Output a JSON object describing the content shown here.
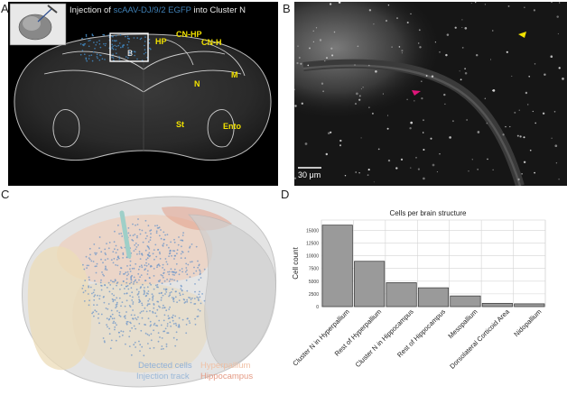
{
  "panels": {
    "a": {
      "letter": "A",
      "title_prefix": "Injection of",
      "title_virus": "scAAV-DJ/9/2 EGFP",
      "title_suffix": "into Cluster N",
      "box_label": "B",
      "regions": {
        "hp": "HP",
        "cn_hp": "CN-HP",
        "cn_h": "CN-H",
        "m": "M",
        "n": "N",
        "st": "St",
        "ento": "Ento"
      }
    },
    "b": {
      "letter": "B",
      "scale_bar": "30 μm",
      "arrow_colors": {
        "yellow": "#f2e200",
        "magenta": "#e0157a"
      }
    },
    "c": {
      "letter": "C",
      "legend": {
        "detected_cells": "Detected cells",
        "injection_track": "Injection track",
        "hyperpallium": "Hyperpallium",
        "hippocampus": "Hippocampus"
      },
      "colors": {
        "detected_cells": "#8fb0d8",
        "injection_track": "#9ab8d8",
        "hyperpallium": "#f0c8b0",
        "hippocampus": "#e4a08a"
      }
    },
    "d": {
      "letter": "D"
    }
  },
  "chart_data": {
    "type": "bar",
    "title": "Cells per brain structure",
    "ylabel": "Cell count",
    "xlabel": "",
    "categories": [
      "Cluster N in Hyperpallium",
      "Rest of Hyperpallium",
      "Cluster N in Hippocampus",
      "Rest of Hippocampus",
      "Mesopallium",
      "Dorsolateral Corticoid Area",
      "Nidopallium"
    ],
    "values": [
      16000,
      8900,
      4700,
      3700,
      2100,
      650,
      550
    ],
    "ylim": [
      0,
      17000
    ],
    "yticks": [
      0,
      2500,
      5000,
      7500,
      10000,
      12500,
      15000
    ],
    "ytick_labels": [
      "0",
      "2500",
      "5000",
      "7500",
      "10000",
      "12500",
      "15000"
    ],
    "grid": true,
    "bar_color": "#9a9a9a"
  }
}
